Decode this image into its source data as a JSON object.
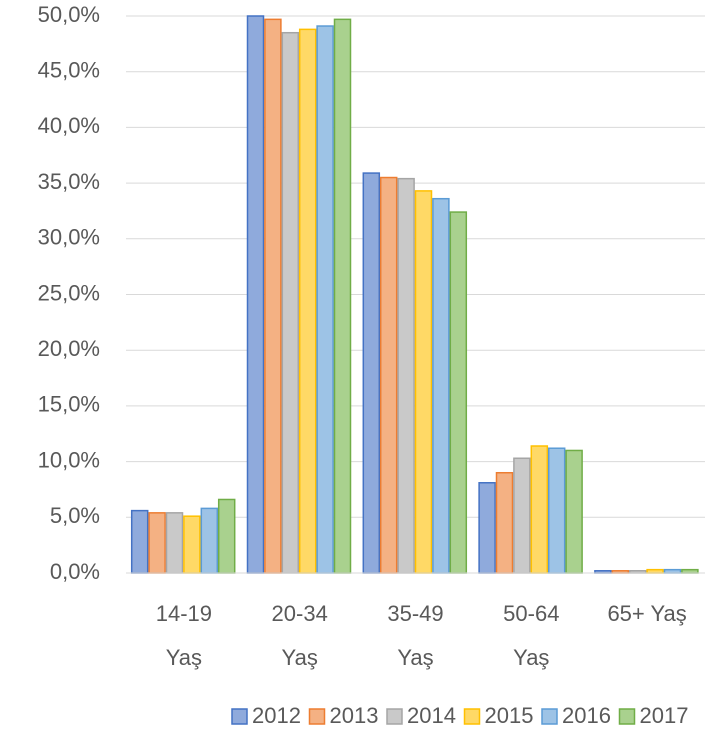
{
  "chart_data": {
    "type": "bar",
    "categories": [
      "14-19\nYaş",
      "20-34\nYaş",
      "35-49\nYaş",
      "50-64\nYaş",
      "65+ Yaş"
    ],
    "series": [
      {
        "name": "2012",
        "color": "#8faadc",
        "edgecolor": "#4472c4",
        "values": [
          5.6,
          50.0,
          35.9,
          8.1,
          0.2
        ]
      },
      {
        "name": "2013",
        "color": "#f4b183",
        "edgecolor": "#ed7d31",
        "values": [
          5.4,
          49.7,
          35.5,
          9.0,
          0.2
        ]
      },
      {
        "name": "2014",
        "color": "#c9c9c9",
        "edgecolor": "#a5a5a5",
        "values": [
          5.4,
          48.5,
          35.4,
          10.3,
          0.2
        ]
      },
      {
        "name": "2015",
        "color": "#ffd966",
        "edgecolor": "#ffc000",
        "values": [
          5.1,
          48.8,
          34.3,
          11.4,
          0.3
        ]
      },
      {
        "name": "2016",
        "color": "#9dc3e6",
        "edgecolor": "#5b9bd5",
        "values": [
          5.8,
          49.1,
          33.6,
          11.2,
          0.3
        ]
      },
      {
        "name": "2017",
        "color": "#a9d18e",
        "edgecolor": "#70ad47",
        "values": [
          6.6,
          49.7,
          32.4,
          11.0,
          0.3
        ]
      }
    ],
    "ylim": [
      0,
      50
    ],
    "yticks": [
      {
        "value": 0,
        "label": "0,0%"
      },
      {
        "value": 5,
        "label": "5,0%"
      },
      {
        "value": 10,
        "label": "10,0%"
      },
      {
        "value": 15,
        "label": "15,0%"
      },
      {
        "value": 20,
        "label": "20,0%"
      },
      {
        "value": 25,
        "label": "25,0%"
      },
      {
        "value": 30,
        "label": "30,0%"
      },
      {
        "value": 35,
        "label": "35,0%"
      },
      {
        "value": 40,
        "label": "40,0%"
      },
      {
        "value": 45,
        "label": "45,0%"
      },
      {
        "value": 50,
        "label": "50,0%"
      }
    ],
    "grid": true,
    "legend": "bottom"
  }
}
